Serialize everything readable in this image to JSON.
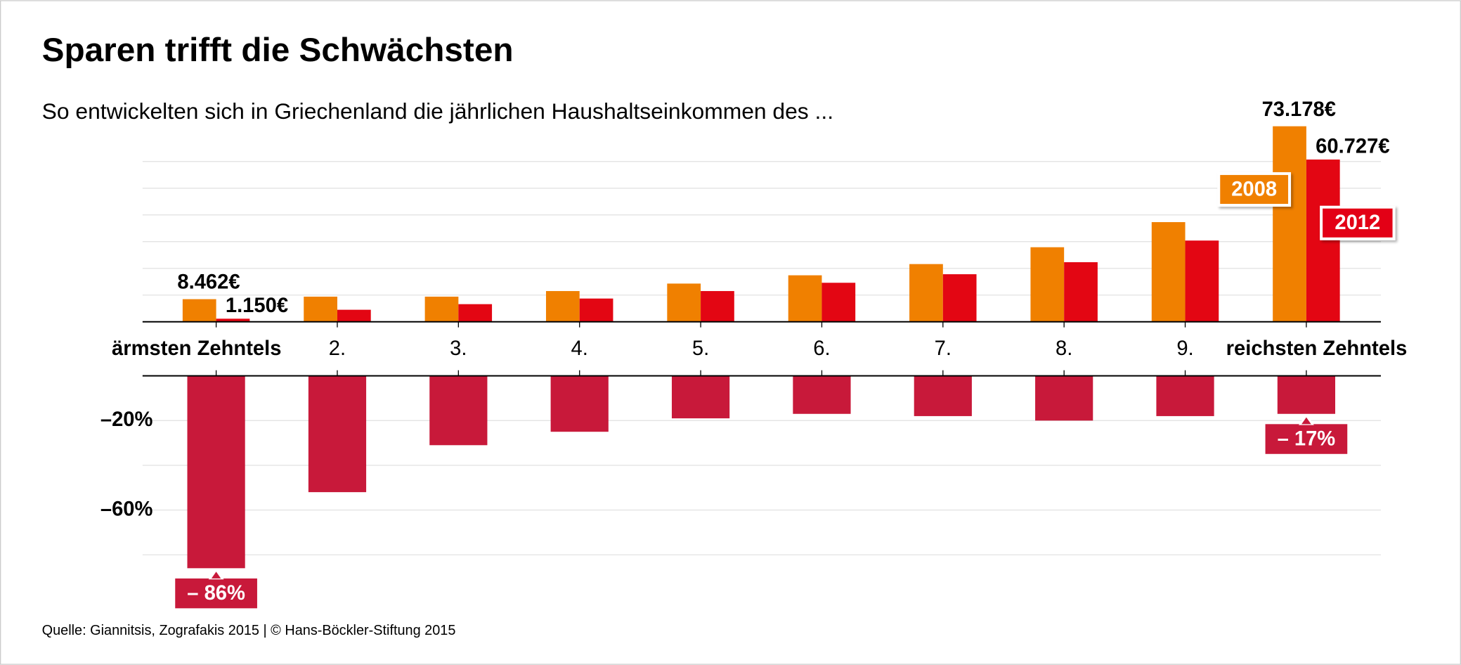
{
  "title": "Sparen trifft die Schwächsten",
  "subtitle": "So entwickelten sich in Griechenland die jährlichen Haushaltseinkommen des ...",
  "source": "Quelle: Giannitsis, Zografakis 2015 | © Hans-Böckler-Stiftung 2015",
  "chart_data": [
    {
      "type": "bar",
      "categories": [
        "ärmsten Zehntels",
        "2.",
        "3.",
        "4.",
        "5.",
        "6.",
        "7.",
        "8.",
        "9.",
        "reichsten Zehntels"
      ],
      "series": [
        {
          "name": "2008",
          "color": "#f08000",
          "values": [
            8462,
            9400,
            9400,
            11500,
            14300,
            17400,
            21600,
            27900,
            37300,
            73178
          ],
          "value_labels": [
            "8.462€",
            null,
            null,
            null,
            null,
            null,
            null,
            null,
            null,
            "73.178€"
          ]
        },
        {
          "name": "2012",
          "color": "#e30613",
          "values": [
            1150,
            4500,
            6600,
            8700,
            11500,
            14600,
            17800,
            22300,
            30400,
            60727
          ],
          "value_labels": [
            "1.150€",
            null,
            null,
            null,
            null,
            null,
            null,
            null,
            null,
            "60.727€"
          ]
        }
      ],
      "ylim": [
        0,
        75000
      ],
      "grid": [
        10000,
        20000,
        30000,
        40000,
        50000,
        60000
      ]
    },
    {
      "type": "bar",
      "color": "#c8193a",
      "values": [
        -86,
        -52,
        -31,
        -25,
        -19,
        -17,
        -18,
        -20,
        -18,
        -17
      ],
      "value_labels": [
        "– 86%",
        null,
        null,
        null,
        null,
        null,
        null,
        null,
        null,
        "– 17%"
      ],
      "ylim": [
        -90,
        0
      ],
      "yticks": [
        {
          "value": -20,
          "label": "–20%"
        },
        {
          "value": -60,
          "label": "–60%"
        }
      ],
      "yminor": [
        -40,
        -80
      ]
    }
  ]
}
